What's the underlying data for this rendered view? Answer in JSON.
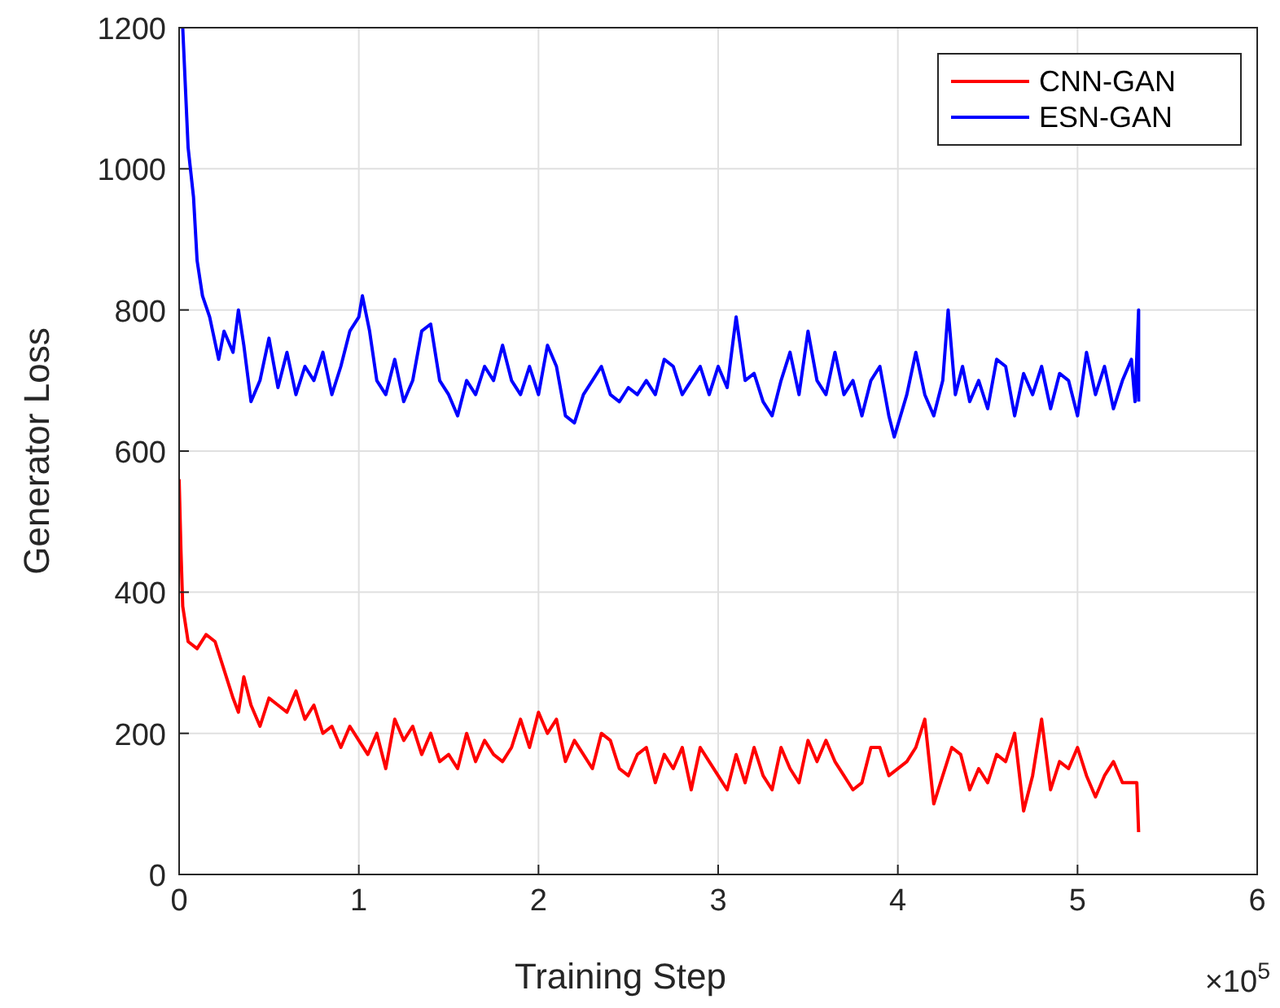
{
  "chart_data": {
    "type": "line",
    "xlabel": "Training Step",
    "ylabel": "Generator Loss",
    "annotations": [
      "×10$^{5}$"
    ],
    "xlim": [
      0,
      6
    ],
    "xticks": [
      0,
      1,
      2,
      3,
      4,
      5,
      6
    ],
    "ylim": [
      0,
      1200
    ],
    "yticks": [
      0,
      200,
      400,
      600,
      800,
      1000,
      1200
    ],
    "grid": true,
    "legend": "top right",
    "marker": "none",
    "line_style": "solid",
    "series": [
      {
        "name": "CNN-GAN",
        "color": "#ff0000",
        "x": [
          0,
          0.01,
          0.02,
          0.05,
          0.1,
          0.15,
          0.2,
          0.25,
          0.3,
          0.33,
          0.36,
          0.4,
          0.45,
          0.5,
          0.55,
          0.6,
          0.65,
          0.7,
          0.75,
          0.8,
          0.85,
          0.9,
          0.95,
          1.0,
          1.05,
          1.1,
          1.15,
          1.2,
          1.25,
          1.3,
          1.35,
          1.4,
          1.45,
          1.5,
          1.55,
          1.6,
          1.65,
          1.7,
          1.75,
          1.8,
          1.85,
          1.9,
          1.95,
          2.0,
          2.05,
          2.1,
          2.15,
          2.2,
          2.25,
          2.3,
          2.35,
          2.4,
          2.45,
          2.5,
          2.55,
          2.6,
          2.65,
          2.7,
          2.75,
          2.8,
          2.85,
          2.9,
          2.95,
          3.0,
          3.05,
          3.1,
          3.15,
          3.2,
          3.25,
          3.3,
          3.35,
          3.4,
          3.45,
          3.5,
          3.55,
          3.6,
          3.65,
          3.7,
          3.75,
          3.8,
          3.85,
          3.9,
          3.95,
          4.05,
          4.1,
          4.15,
          4.2,
          4.25,
          4.3,
          4.35,
          4.4,
          4.45,
          4.5,
          4.55,
          4.6,
          4.65,
          4.7,
          4.75,
          4.8,
          4.85,
          4.9,
          4.95,
          5.0,
          5.05,
          5.1,
          5.15,
          5.2,
          5.25,
          5.3,
          5.33,
          5.34
        ],
        "values": [
          560,
          460,
          380,
          330,
          320,
          340,
          330,
          290,
          250,
          230,
          280,
          240,
          210,
          250,
          240,
          230,
          260,
          220,
          240,
          200,
          210,
          180,
          210,
          190,
          170,
          200,
          150,
          220,
          190,
          210,
          170,
          200,
          160,
          170,
          150,
          200,
          160,
          190,
          170,
          160,
          180,
          220,
          180,
          230,
          200,
          220,
          160,
          190,
          170,
          150,
          200,
          190,
          150,
          140,
          170,
          180,
          130,
          170,
          150,
          180,
          120,
          180,
          160,
          140,
          120,
          170,
          130,
          180,
          140,
          120,
          180,
          150,
          130,
          190,
          160,
          190,
          160,
          140,
          120,
          130,
          180,
          180,
          140,
          160,
          180,
          220,
          100,
          140,
          180,
          170,
          120,
          150,
          130,
          170,
          160,
          200,
          90,
          140,
          220,
          120,
          160,
          150,
          180,
          140,
          110,
          140,
          160,
          130,
          130,
          130,
          60
        ]
      },
      {
        "name": "ESN-GAN",
        "color": "#0000ff",
        "x": [
          0.02,
          0.05,
          0.08,
          0.1,
          0.13,
          0.17,
          0.22,
          0.25,
          0.3,
          0.33,
          0.36,
          0.4,
          0.45,
          0.5,
          0.55,
          0.6,
          0.65,
          0.7,
          0.75,
          0.8,
          0.85,
          0.9,
          0.95,
          1.0,
          1.02,
          1.06,
          1.1,
          1.15,
          1.2,
          1.25,
          1.3,
          1.35,
          1.4,
          1.45,
          1.5,
          1.55,
          1.6,
          1.65,
          1.7,
          1.75,
          1.8,
          1.85,
          1.9,
          1.95,
          2.0,
          2.05,
          2.1,
          2.15,
          2.2,
          2.25,
          2.3,
          2.35,
          2.4,
          2.45,
          2.5,
          2.55,
          2.6,
          2.65,
          2.7,
          2.75,
          2.8,
          2.85,
          2.9,
          2.95,
          3.0,
          3.05,
          3.1,
          3.15,
          3.2,
          3.25,
          3.3,
          3.35,
          3.4,
          3.45,
          3.5,
          3.55,
          3.6,
          3.65,
          3.7,
          3.75,
          3.8,
          3.85,
          3.9,
          3.95,
          3.98,
          4.05,
          4.1,
          4.15,
          4.2,
          4.25,
          4.28,
          4.32,
          4.36,
          4.4,
          4.45,
          4.5,
          4.55,
          4.6,
          4.65,
          4.7,
          4.75,
          4.8,
          4.85,
          4.9,
          4.95,
          5.0,
          5.05,
          5.1,
          5.15,
          5.2,
          5.25,
          5.3,
          5.32,
          5.34,
          5.34
        ],
        "values": [
          1200,
          1030,
          960,
          870,
          820,
          790,
          730,
          770,
          740,
          800,
          750,
          670,
          700,
          760,
          690,
          740,
          680,
          720,
          700,
          740,
          680,
          720,
          770,
          790,
          820,
          770,
          700,
          680,
          730,
          670,
          700,
          770,
          780,
          700,
          680,
          650,
          700,
          680,
          720,
          700,
          750,
          700,
          680,
          720,
          680,
          750,
          720,
          650,
          640,
          680,
          700,
          720,
          680,
          670,
          690,
          680,
          700,
          680,
          730,
          720,
          680,
          700,
          720,
          680,
          720,
          690,
          790,
          700,
          710,
          670,
          650,
          700,
          740,
          680,
          770,
          700,
          680,
          740,
          680,
          700,
          650,
          700,
          720,
          650,
          620,
          680,
          740,
          680,
          650,
          700,
          800,
          680,
          720,
          670,
          700,
          660,
          730,
          720,
          650,
          710,
          680,
          720,
          660,
          710,
          700,
          650,
          740,
          680,
          720,
          660,
          700,
          730,
          670,
          800,
          670
        ]
      }
    ]
  }
}
